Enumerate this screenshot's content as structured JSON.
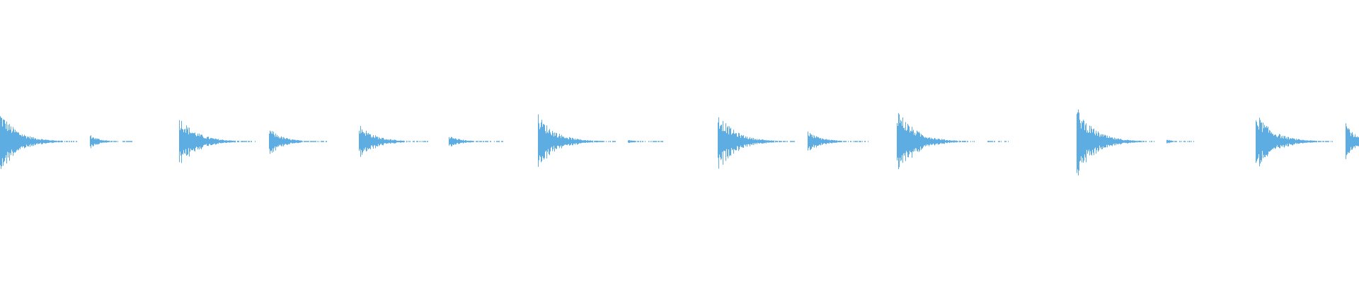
{
  "waveform": {
    "color": "#5dade2",
    "background": "#ffffff",
    "beats_per_view": 15.15,
    "hits": [
      {
        "beat": 0,
        "peak": 0.88,
        "decay": 1.0
      },
      {
        "beat": 1,
        "peak": 0.2,
        "decay": 0.55
      },
      {
        "beat": 2,
        "peak": 0.73,
        "decay": 1.0
      },
      {
        "beat": 3,
        "peak": 0.39,
        "decay": 0.75
      },
      {
        "beat": 4,
        "peak": 0.51,
        "decay": 0.9
      },
      {
        "beat": 5,
        "peak": 0.17,
        "decay": 0.7
      },
      {
        "beat": 6,
        "peak": 0.78,
        "decay": 1.0
      },
      {
        "beat": 7,
        "peak": 0.05,
        "decay": 0.45
      },
      {
        "beat": 8,
        "peak": 0.83,
        "decay": 1.0
      },
      {
        "beat": 9,
        "peak": 0.29,
        "decay": 0.8
      },
      {
        "beat": 10,
        "peak": 1.0,
        "decay": 1.0
      },
      {
        "beat": 11,
        "peak": 0.03,
        "decay": 0.3
      },
      {
        "beat": 12,
        "peak": 1.0,
        "decay": 1.0
      },
      {
        "beat": 13,
        "peak": 0.07,
        "decay": 0.35
      },
      {
        "beat": 14,
        "peak": 0.85,
        "decay": 1.0
      },
      {
        "beat": 15,
        "peak": 0.61,
        "decay": 0.5
      }
    ]
  }
}
